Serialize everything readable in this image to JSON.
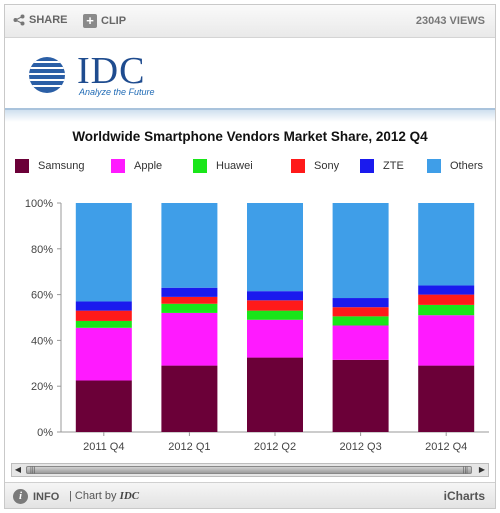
{
  "toolbar": {
    "share_label": "SHARE",
    "clip_label": "CLIP",
    "clip_symbol": "+",
    "views": "23043 VIEWS"
  },
  "logo": {
    "name": "IDC",
    "tagline": "Analyze the Future"
  },
  "footer": {
    "info_label": "INFO",
    "info_symbol": "i",
    "chart_by_prefix": "| Chart by",
    "chart_by_brand": "IDC",
    "brand": "iCharts"
  },
  "chart_data": {
    "type": "bar",
    "stacked": true,
    "title": "Worldwide Smartphone Vendors Market Share, 2012 Q4",
    "xlabel": "",
    "ylabel": "",
    "ylim": [
      0,
      100
    ],
    "yticks": [
      "0%",
      "20%",
      "40%",
      "60%",
      "80%",
      "100%"
    ],
    "categories": [
      "2011 Q4",
      "2012 Q1",
      "2012 Q2",
      "2012 Q3",
      "2012 Q4"
    ],
    "legend_position": "top",
    "series": [
      {
        "name": "Samsung",
        "color": "#6b0038",
        "values": [
          22.5,
          29.0,
          32.5,
          31.5,
          29.0
        ]
      },
      {
        "name": "Apple",
        "color": "#ff1aff",
        "values": [
          23.0,
          23.0,
          16.5,
          15.0,
          22.0
        ]
      },
      {
        "name": "Huawei",
        "color": "#19e619",
        "values": [
          3.0,
          4.0,
          4.0,
          4.0,
          4.5
        ]
      },
      {
        "name": "Sony",
        "color": "#ff1a1a",
        "values": [
          4.5,
          3.0,
          4.5,
          4.0,
          4.5
        ]
      },
      {
        "name": "ZTE",
        "color": "#1a1aee",
        "values": [
          4.0,
          4.0,
          4.0,
          4.0,
          4.0
        ]
      },
      {
        "name": "Others",
        "color": "#3f9ee8",
        "values": [
          43.0,
          37.0,
          38.5,
          41.5,
          36.0
        ]
      }
    ]
  }
}
